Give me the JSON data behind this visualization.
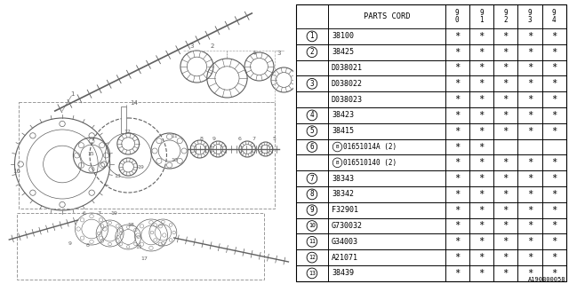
{
  "ref_code": "A190B00058",
  "rows": [
    {
      "num": "1",
      "part": "38100",
      "marks": [
        true,
        true,
        true,
        true,
        true
      ]
    },
    {
      "num": "2",
      "part": "38425",
      "marks": [
        true,
        true,
        true,
        true,
        true
      ]
    },
    {
      "num": "",
      "part": "D038021",
      "marks": [
        true,
        true,
        true,
        true,
        true
      ]
    },
    {
      "num": "3",
      "part": "D038022",
      "marks": [
        true,
        true,
        true,
        true,
        true
      ]
    },
    {
      "num": "",
      "part": "D038023",
      "marks": [
        true,
        true,
        true,
        true,
        true
      ]
    },
    {
      "num": "4",
      "part": "38423",
      "marks": [
        true,
        true,
        true,
        true,
        true
      ]
    },
    {
      "num": "5",
      "part": "38415",
      "marks": [
        true,
        true,
        true,
        true,
        true
      ]
    },
    {
      "num": "6",
      "part": "B01651014A (2)",
      "marks": [
        true,
        true,
        false,
        false,
        false
      ]
    },
    {
      "num": "",
      "part": "B016510140 (2)",
      "marks": [
        true,
        true,
        true,
        true,
        true
      ]
    },
    {
      "num": "7",
      "part": "38343",
      "marks": [
        true,
        true,
        true,
        true,
        true
      ]
    },
    {
      "num": "8",
      "part": "38342",
      "marks": [
        true,
        true,
        true,
        true,
        true
      ]
    },
    {
      "num": "9",
      "part": "F32901",
      "marks": [
        true,
        true,
        true,
        true,
        true
      ]
    },
    {
      "num": "10",
      "part": "G730032",
      "marks": [
        true,
        true,
        true,
        true,
        true
      ]
    },
    {
      "num": "11",
      "part": "G34003",
      "marks": [
        true,
        true,
        true,
        true,
        true
      ]
    },
    {
      "num": "12",
      "part": "A21071",
      "marks": [
        true,
        true,
        true,
        true,
        true
      ]
    },
    {
      "num": "13",
      "part": "38439",
      "marks": [
        true,
        true,
        true,
        true,
        true
      ]
    }
  ],
  "year_cols": [
    "9\n0",
    "9\n1",
    "9\n2",
    "9\n3",
    "9\n4"
  ],
  "bg_color": "#ffffff",
  "line_color": "#000000",
  "text_color": "#000000"
}
